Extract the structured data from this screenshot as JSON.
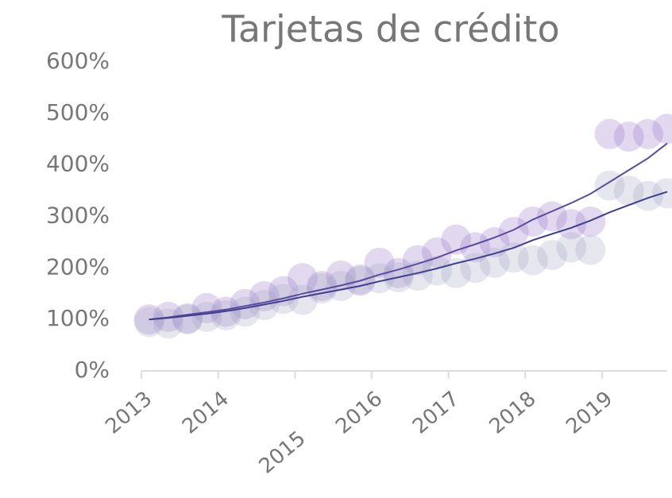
{
  "chart_data": {
    "type": "scatter",
    "title": "Tarjetas de crédito",
    "xlim": [
      2013,
      2019.85
    ],
    "xticks": [
      2013,
      2014,
      2015,
      2016,
      2017,
      2018,
      2019
    ],
    "ylim": [
      0,
      600
    ],
    "yticks": [
      {
        "value": 0,
        "label": "0%"
      },
      {
        "value": 100,
        "label": "100%"
      },
      {
        "value": 200,
        "label": "200%"
      },
      {
        "value": 300,
        "label": "300%"
      },
      {
        "value": 400,
        "label": "400%"
      },
      {
        "value": 500,
        "label": "500%"
      },
      {
        "value": 600,
        "label": "600%"
      }
    ],
    "x": [
      2013.1,
      2013.35,
      2013.6,
      2013.85,
      2014.1,
      2014.35,
      2014.6,
      2014.85,
      2015.1,
      2015.35,
      2015.6,
      2015.85,
      2016.1,
      2016.35,
      2016.6,
      2016.85,
      2017.1,
      2017.35,
      2017.6,
      2017.85,
      2018.1,
      2018.35,
      2018.6,
      2018.85,
      2019.1,
      2019.35,
      2019.6,
      2019.85
    ],
    "series": [
      {
        "color": "rgba(150,120,200,0.28)",
        "values": [
          100,
          105,
          102,
          122,
          115,
          130,
          145,
          155,
          180,
          165,
          185,
          175,
          210,
          190,
          215,
          230,
          255,
          240,
          250,
          270,
          290,
          300,
          285,
          290,
          460,
          455,
          460,
          470
        ]
      },
      {
        "color": "rgba(160,165,195,0.28)",
        "values": [
          95,
          92,
          100,
          105,
          108,
          115,
          128,
          140,
          138,
          160,
          165,
          178,
          180,
          182,
          185,
          195,
          190,
          200,
          210,
          220,
          215,
          225,
          240,
          235,
          360,
          350,
          340,
          345
        ]
      },
      {
        "kind": "line",
        "color": "#5b4a9e",
        "values": [
          100,
          104,
          109,
          114,
          119,
          126,
          133,
          141,
          150,
          158,
          166,
          175,
          187,
          197,
          208,
          220,
          234,
          246,
          259,
          274,
          294,
          310,
          326,
          344,
          367,
          390,
          413,
          442
        ]
      },
      {
        "kind": "line",
        "color": "#3f3f8f",
        "values": [
          100,
          103,
          107,
          111,
          116,
          122,
          129,
          136,
          144,
          151,
          158,
          165,
          174,
          182,
          190,
          199,
          209,
          218,
          228,
          239,
          254,
          266,
          278,
          292,
          308,
          322,
          336,
          348
        ]
      }
    ]
  }
}
